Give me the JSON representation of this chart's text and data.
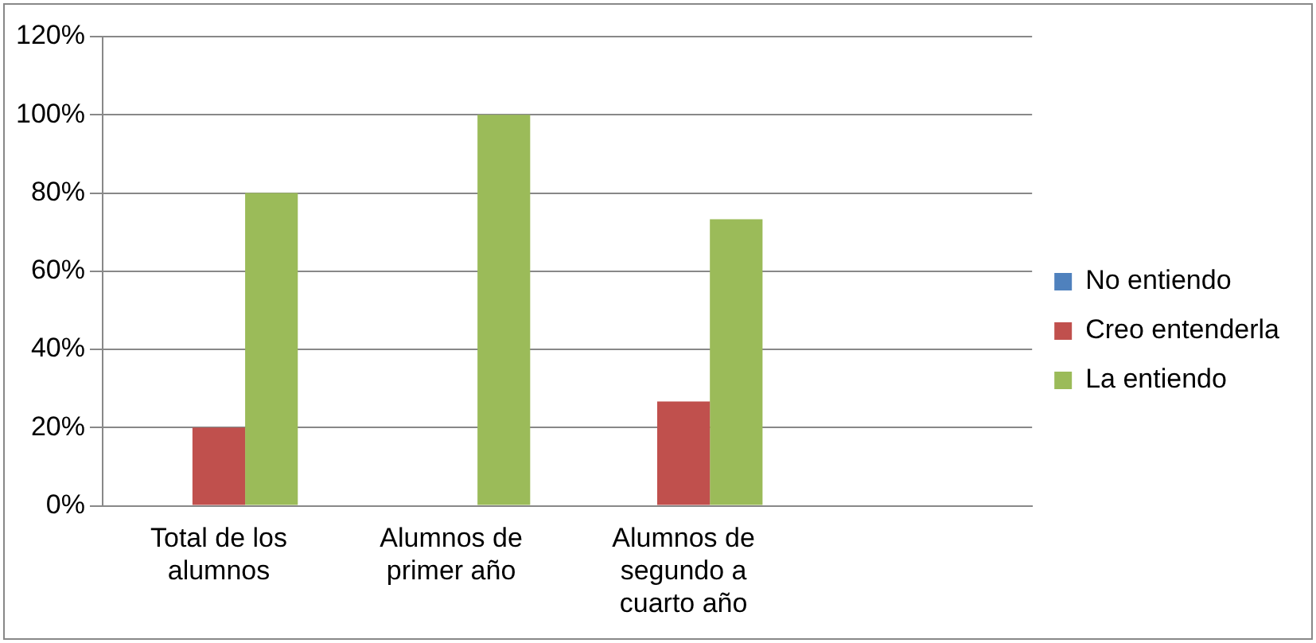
{
  "chart_data": {
    "type": "bar",
    "categories": [
      "Total de los alumnos",
      "Alumnos de primer año",
      "Alumnos de segundo a cuarto año",
      null
    ],
    "series": [
      {
        "name": "No entiendo",
        "color": "#4f81bd",
        "values": [
          0,
          0,
          0,
          null
        ]
      },
      {
        "name": "Creo entenderla",
        "color": "#c0504d",
        "values": [
          20,
          0,
          26.7,
          null
        ]
      },
      {
        "name": "La entiendo",
        "color": "#9bbb59",
        "values": [
          80,
          100,
          73.3,
          null
        ]
      }
    ],
    "ylim": [
      0,
      120
    ],
    "yticks": [
      {
        "value": 0,
        "label": "0%"
      },
      {
        "value": 20,
        "label": "20%"
      },
      {
        "value": 40,
        "label": "40%"
      },
      {
        "value": 60,
        "label": "60%"
      },
      {
        "value": 80,
        "label": "80%"
      },
      {
        "value": 100,
        "label": "100%"
      },
      {
        "value": 120,
        "label": "120%"
      }
    ],
    "grid": "y",
    "legend": "right"
  }
}
